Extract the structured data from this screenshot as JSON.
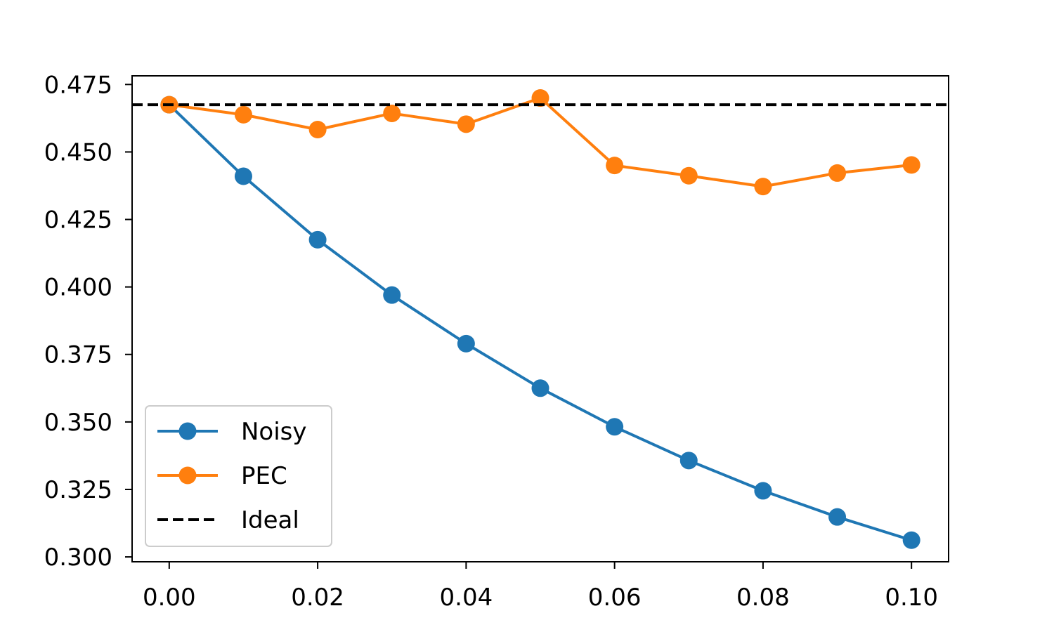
{
  "chart_data": {
    "type": "line",
    "title": "",
    "xlabel": "",
    "ylabel": "",
    "x": [
      0.0,
      0.01,
      0.02,
      0.03,
      0.04,
      0.05,
      0.06,
      0.07,
      0.08,
      0.09,
      0.1
    ],
    "xlim": [
      -0.005,
      0.105
    ],
    "ylim": [
      0.2982,
      0.4782
    ],
    "xticks": [
      0.0,
      0.02,
      0.04,
      0.06,
      0.08,
      0.1
    ],
    "xtick_labels": [
      "0.00",
      "0.02",
      "0.04",
      "0.06",
      "0.08",
      "0.10"
    ],
    "yticks": [
      0.3,
      0.325,
      0.35,
      0.375,
      0.4,
      0.425,
      0.45,
      0.475
    ],
    "ytick_labels": [
      "0.300",
      "0.325",
      "0.350",
      "0.375",
      "0.400",
      "0.425",
      "0.450",
      "0.475"
    ],
    "grid": false,
    "legend_position": "lower-left",
    "series": [
      {
        "name": "Noisy",
        "color": "#1f77b4",
        "marker": "circle",
        "style": "solid",
        "values": [
          0.4675,
          0.441,
          0.4175,
          0.397,
          0.379,
          0.3625,
          0.3482,
          0.3357,
          0.3245,
          0.3148,
          0.3062
        ]
      },
      {
        "name": "PEC",
        "color": "#ff7f0e",
        "marker": "circle",
        "style": "solid",
        "values": [
          0.4675,
          0.4638,
          0.4583,
          0.4643,
          0.4603,
          0.47,
          0.445,
          0.4412,
          0.4372,
          0.4422,
          0.4452
        ]
      }
    ],
    "hlines": [
      {
        "name": "Ideal",
        "y": 0.4675,
        "color": "#000000",
        "style": "dashed"
      }
    ]
  }
}
